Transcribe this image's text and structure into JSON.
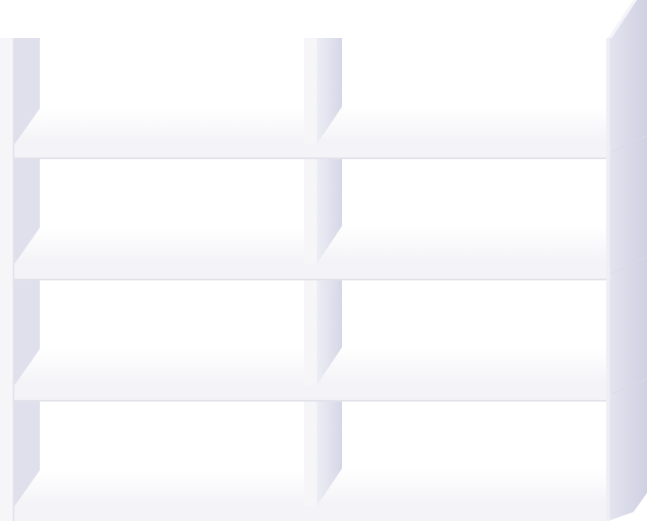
{
  "scene": {
    "subject": "",
    "columns": 2,
    "rows": 4
  },
  "colors": {
    "background": "#ffffff",
    "board_face": "#f7f7fa",
    "board_edge": "#e9e9ef",
    "board_shadow": "#dcdce6",
    "back_face": "#ffffff",
    "side_panel": "#e3e3ee",
    "side_panel_dark": "#d2d2e2",
    "right_side_light": "#e8e8f1",
    "right_side_dark": "#c8c9dc"
  }
}
